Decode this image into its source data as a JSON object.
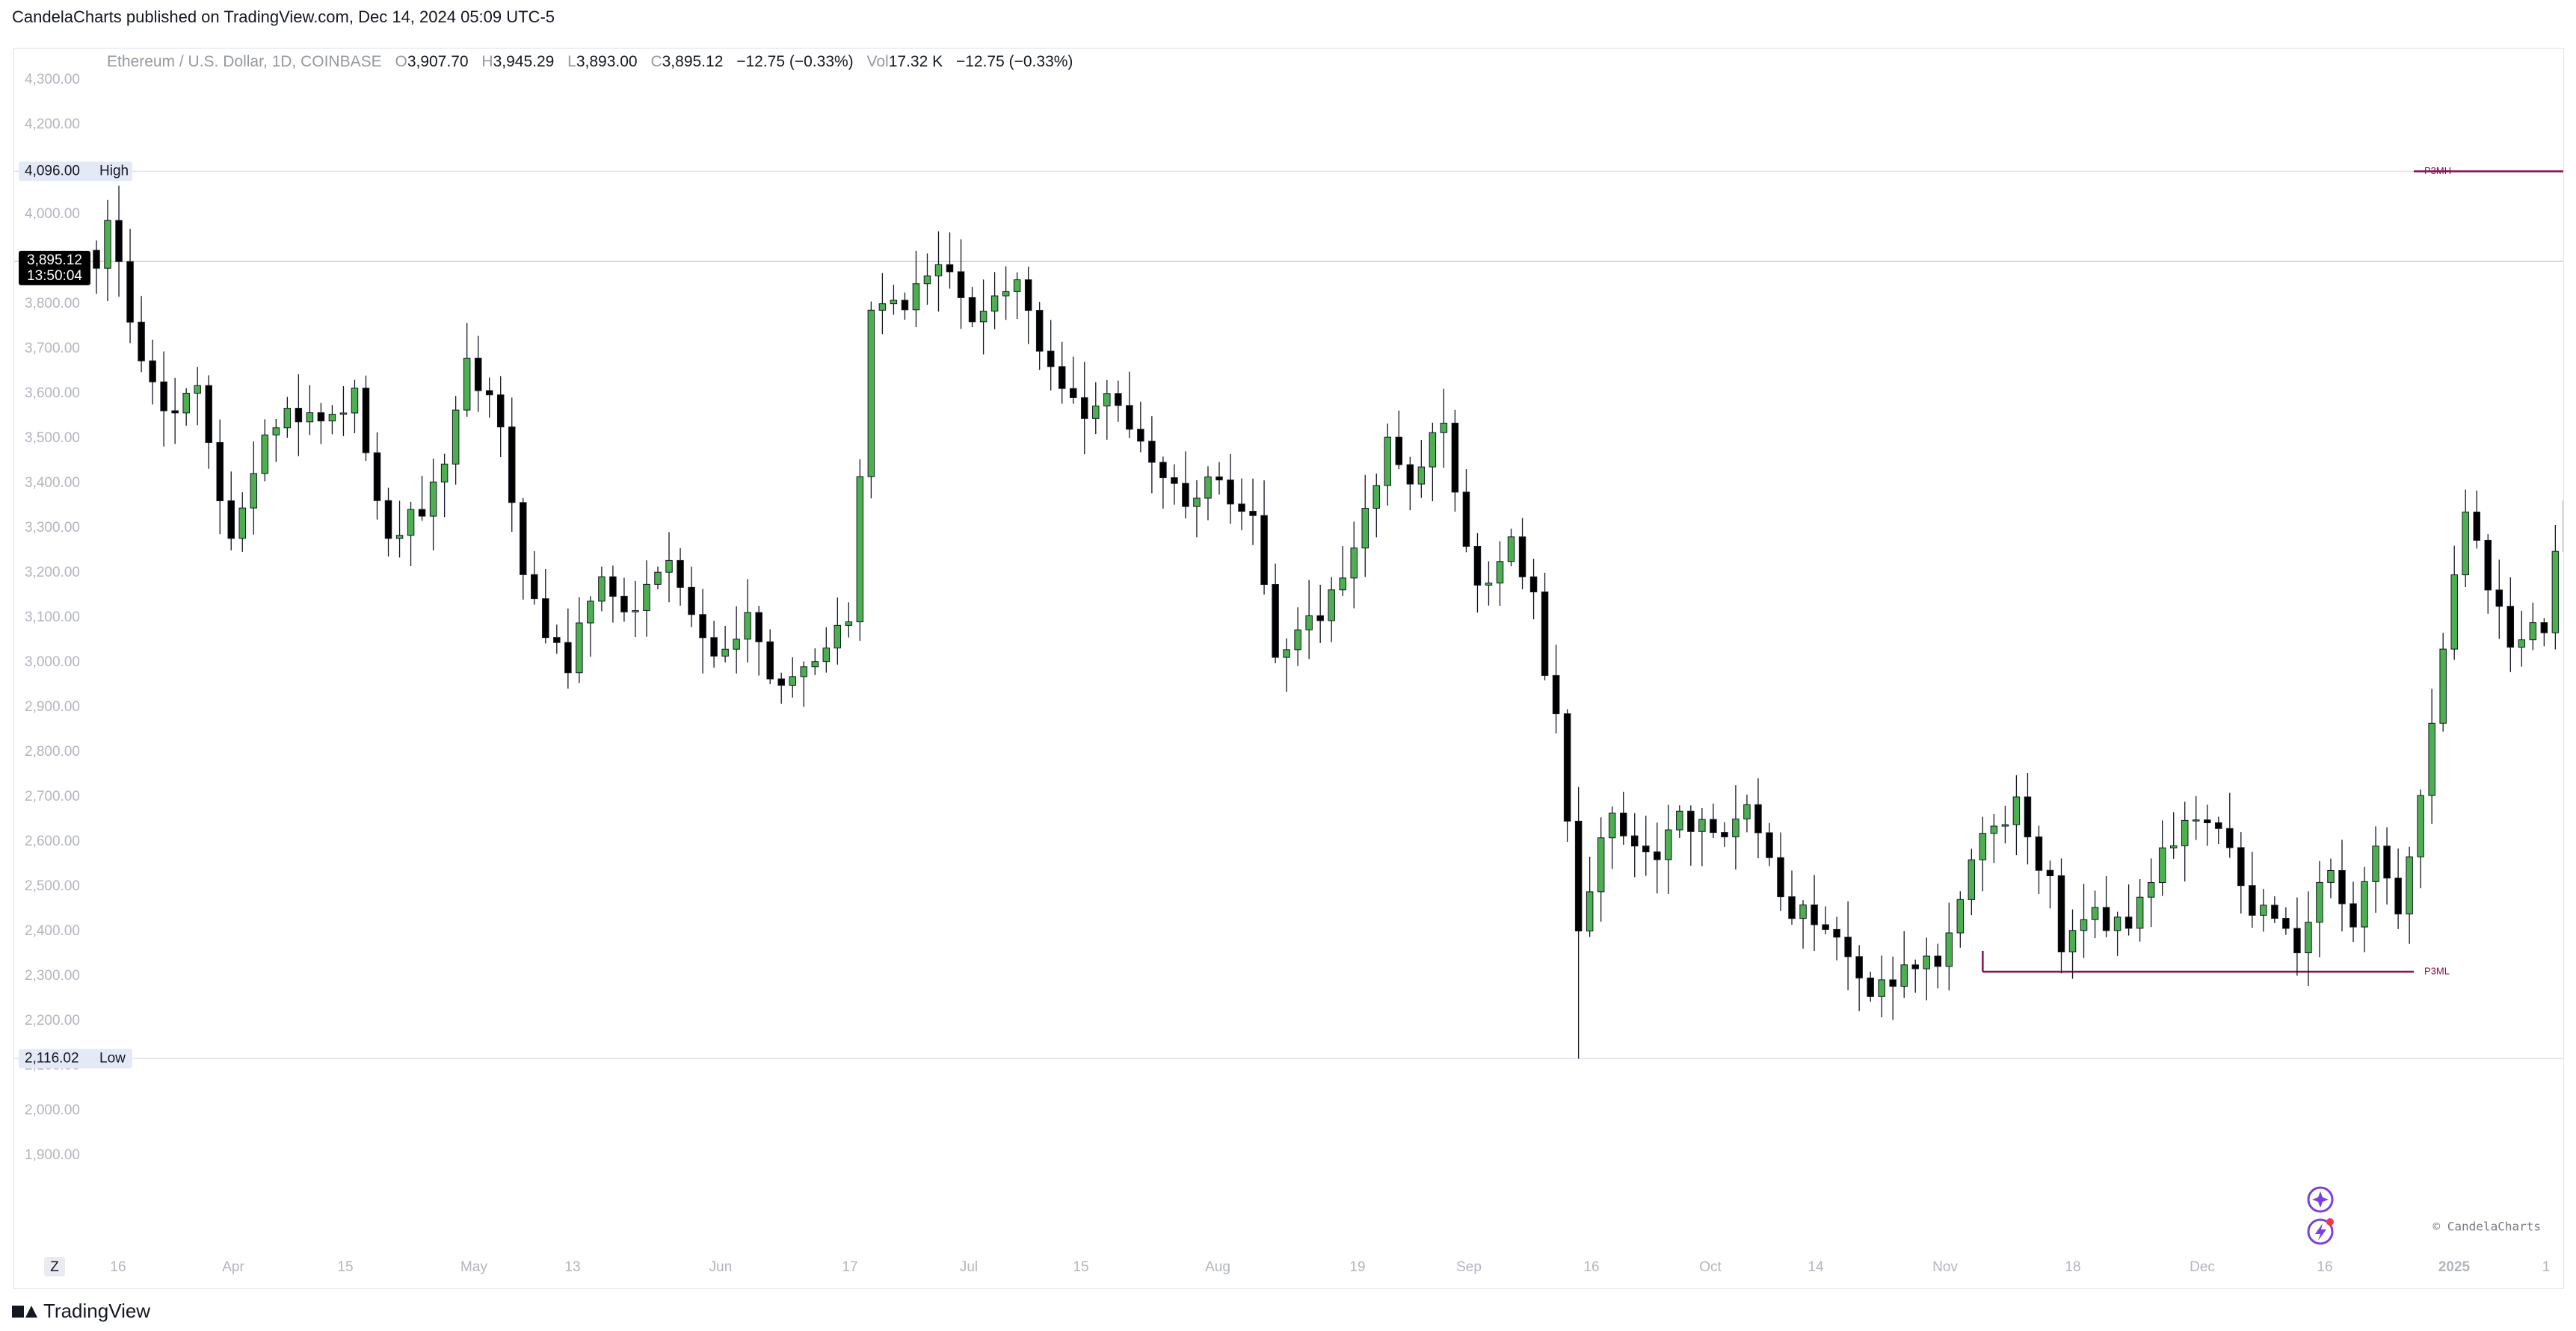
{
  "header": {
    "text": "CandelaCharts published on TradingView.com, Dec 14, 2024 05:09 UTC-5"
  },
  "footer": {
    "brand": "TradingView"
  },
  "watermark": "© CandelaCharts",
  "zoom_button": "Z",
  "ohlc": {
    "symbol": "Ethereum / U.S. Dollar, 1D, COINBASE",
    "o_label": "O",
    "o": "3,907.70",
    "h_label": "H",
    "h": "3,945.29",
    "l_label": "L",
    "l": "3,893.00",
    "c_label": "C",
    "c": "3,895.12",
    "change": "−12.75 (−0.33%)",
    "vol_label": "Vol",
    "vol": "17.32 K",
    "vol_change": "−12.75 (−0.33%)"
  },
  "chart_data": {
    "type": "candlestick",
    "x_ticks": [
      "16",
      "Apr",
      "15",
      "May",
      "13",
      "Jun",
      "17",
      "Jul",
      "15",
      "Aug",
      "19",
      "Sep",
      "16",
      "Oct",
      "14",
      "Nov",
      "18",
      "Dec",
      "16",
      "2025",
      "1"
    ],
    "y_ticks": [
      "4,300.00",
      "4,200.00",
      "4,100.00",
      "4,000.00",
      "3,900.00",
      "3,800.00",
      "3,700.00",
      "3,600.00",
      "3,500.00",
      "3,400.00",
      "3,300.00",
      "3,200.00",
      "3,100.00",
      "3,000.00",
      "2,900.00",
      "2,800.00",
      "2,700.00",
      "2,600.00",
      "2,500.00",
      "2,400.00",
      "2,300.00",
      "2,200.00",
      "2,100.00",
      "2,000.00",
      "1,900.00"
    ],
    "ylim": [
      1900,
      4340
    ],
    "high": {
      "label": "High",
      "value": 4096.0,
      "text": "4,096.00"
    },
    "low": {
      "label": "Low",
      "value": 2116.02,
      "text": "2,116.02"
    },
    "last": {
      "value": 3895.12,
      "text": "3,895.12",
      "countdown": "13:50:04"
    },
    "levels": [
      {
        "name": "P3MH",
        "value": 4096,
        "from_index": 230
      },
      {
        "name": "P3ML",
        "value": 2310,
        "from_index": 168
      }
    ],
    "colors": {
      "up": "#4caf50",
      "down": "#000000",
      "level": "#880e4f",
      "last": "#000000"
    },
    "grid": false,
    "anchors": [
      [
        0,
        3900
      ],
      [
        1,
        3990
      ],
      [
        3,
        3740
      ],
      [
        6,
        3550
      ],
      [
        9,
        3620
      ],
      [
        12,
        3250
      ],
      [
        14,
        3450
      ],
      [
        17,
        3580
      ],
      [
        20,
        3510
      ],
      [
        23,
        3590
      ],
      [
        26,
        3260
      ],
      [
        30,
        3380
      ],
      [
        33,
        3650
      ],
      [
        36,
        3530
      ],
      [
        38,
        3200
      ],
      [
        40,
        3080
      ],
      [
        42,
        3000
      ],
      [
        45,
        3180
      ],
      [
        48,
        3100
      ],
      [
        51,
        3250
      ],
      [
        54,
        3080
      ],
      [
        56,
        3000
      ],
      [
        58,
        3120
      ],
      [
        61,
        2920
      ],
      [
        63,
        2980
      ],
      [
        67,
        3080
      ],
      [
        69,
        3760
      ],
      [
        72,
        3800
      ],
      [
        76,
        3880
      ],
      [
        78,
        3760
      ],
      [
        82,
        3850
      ],
      [
        85,
        3650
      ],
      [
        88,
        3520
      ],
      [
        91,
        3600
      ],
      [
        94,
        3430
      ],
      [
        97,
        3360
      ],
      [
        100,
        3410
      ],
      [
        103,
        3300
      ],
      [
        105,
        3000
      ],
      [
        108,
        3080
      ],
      [
        112,
        3250
      ],
      [
        115,
        3480
      ],
      [
        117,
        3420
      ],
      [
        120,
        3520
      ],
      [
        123,
        3160
      ],
      [
        126,
        3280
      ],
      [
        128,
        3130
      ],
      [
        130,
        2860
      ],
      [
        132,
        2420
      ],
      [
        135,
        2660
      ],
      [
        138,
        2560
      ],
      [
        141,
        2650
      ],
      [
        144,
        2610
      ],
      [
        147,
        2700
      ],
      [
        150,
        2470
      ],
      [
        153,
        2430
      ],
      [
        156,
        2350
      ],
      [
        158,
        2230
      ],
      [
        161,
        2340
      ],
      [
        164,
        2350
      ],
      [
        166,
        2470
      ],
      [
        168,
        2620
      ],
      [
        171,
        2680
      ],
      [
        174,
        2500
      ],
      [
        175,
        2350
      ],
      [
        178,
        2430
      ],
      [
        181,
        2400
      ],
      [
        184,
        2600
      ],
      [
        187,
        2640
      ],
      [
        190,
        2580
      ],
      [
        192,
        2450
      ],
      [
        196,
        2380
      ],
      [
        199,
        2540
      ],
      [
        201,
        2420
      ],
      [
        203,
        2580
      ],
      [
        205,
        2410
      ],
      [
        207,
        2720
      ],
      [
        209,
        3000
      ],
      [
        211,
        3350
      ],
      [
        213,
        3150
      ],
      [
        215,
        3050
      ],
      [
        218,
        3090
      ],
      [
        220,
        3380
      ],
      [
        223,
        3370
      ],
      [
        225,
        3650
      ],
      [
        228,
        3680
      ],
      [
        230,
        3860
      ],
      [
        232,
        3990
      ],
      [
        233,
        3680
      ],
      [
        235,
        3850
      ],
      [
        237,
        3895
      ]
    ]
  }
}
